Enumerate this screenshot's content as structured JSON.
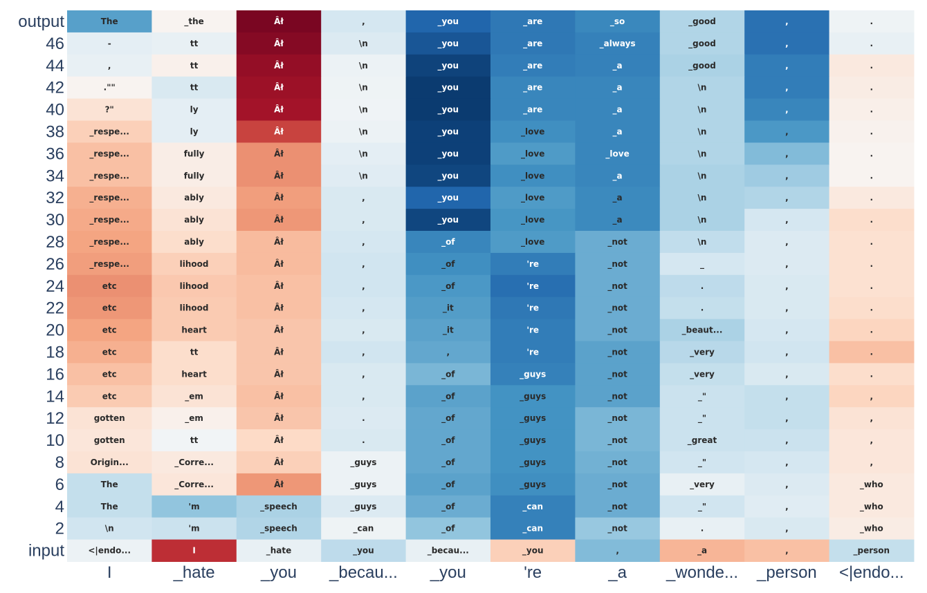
{
  "chart_data": {
    "type": "heatmap",
    "colorscale": "RdBu",
    "x_tick_labels": [
      "I",
      "_hate",
      "_you",
      "_becau...",
      "_you",
      "'re",
      "_a",
      "_wonde...",
      "_person",
      "<|endo..."
    ],
    "y_tick_labels": [
      "output",
      "46",
      "44",
      "42",
      "40",
      "38",
      "36",
      "34",
      "32",
      "30",
      "28",
      "26",
      "24",
      "22",
      "20",
      "18",
      "16",
      "14",
      "12",
      "10",
      "8",
      "6",
      "4",
      "2",
      "input"
    ],
    "cell_text": [
      [
        "The",
        "_the",
        "Âł",
        ",",
        "_you",
        "_are",
        "_so",
        "_good",
        ",",
        "."
      ],
      [
        "-",
        "tt",
        "Âł",
        "\\n",
        "_you",
        "_are",
        "_always",
        "_good",
        ",",
        "."
      ],
      [
        ",",
        "tt",
        "Âł",
        "\\n",
        "_you",
        "_are",
        "_a",
        "_good",
        ",",
        "."
      ],
      [
        ".\"\"",
        "tt",
        "Âł",
        "\\n",
        "_you",
        "_are",
        "_a",
        "\\n",
        ",",
        "."
      ],
      [
        "?\"",
        "ly",
        "Âł",
        "\\n",
        "_you",
        "_are",
        "_a",
        "\\n",
        ",",
        "."
      ],
      [
        "_respe...",
        "ly",
        "Âł",
        "\\n",
        "_you",
        "_love",
        "_a",
        "\\n",
        ",",
        "."
      ],
      [
        "_respe...",
        "fully",
        "Âł",
        "\\n",
        "_you",
        "_love",
        "_love",
        "\\n",
        ",",
        "."
      ],
      [
        "_respe...",
        "fully",
        "Âł",
        "\\n",
        "_you",
        "_love",
        "_a",
        "\\n",
        ",",
        "."
      ],
      [
        "_respe...",
        "ably",
        "Âł",
        ",",
        "_you",
        "_love",
        "_a",
        "\\n",
        ",",
        "."
      ],
      [
        "_respe...",
        "ably",
        "Âł",
        ",",
        "_you",
        "_love",
        "_a",
        "\\n",
        ",",
        "."
      ],
      [
        "_respe...",
        "ably",
        "Âł",
        ",",
        "_of",
        "_love",
        "_not",
        "\\n",
        ",",
        "."
      ],
      [
        "_respe...",
        "lihood",
        "Âł",
        ",",
        "_of",
        "'re",
        "_not",
        "_",
        ",",
        "."
      ],
      [
        "etc",
        "lihood",
        "Âł",
        ",",
        "_of",
        "'re",
        "_not",
        ".",
        ",",
        "."
      ],
      [
        "etc",
        "lihood",
        "Âł",
        ",",
        "_it",
        "'re",
        "_not",
        ".",
        ",",
        "."
      ],
      [
        "etc",
        "heart",
        "Âł",
        ",",
        "_it",
        "'re",
        "_not",
        "_beaut...",
        ",",
        "."
      ],
      [
        "etc",
        "tt",
        "Âł",
        ",",
        ",",
        "'re",
        "_not",
        "_very",
        ",",
        "."
      ],
      [
        "etc",
        "heart",
        "Âł",
        ",",
        "_of",
        "_guys",
        "_not",
        "_very",
        ",",
        "."
      ],
      [
        "etc",
        "_em",
        "Âł",
        ",",
        "_of",
        "_guys",
        "_not",
        "_\"",
        ",",
        ","
      ],
      [
        "gotten",
        "_em",
        "Âł",
        ".",
        "_of",
        "_guys",
        "_not",
        "_\"",
        ",",
        ","
      ],
      [
        "gotten",
        "tt",
        "Âł",
        ".",
        "_of",
        "_guys",
        "_not",
        "_great",
        ",",
        ","
      ],
      [
        "Origin...",
        "_Corre...",
        "Âł",
        "_guys",
        "_of",
        "_guys",
        "_not",
        "_\"",
        ",",
        ","
      ],
      [
        "The",
        "_Corre...",
        "Âł",
        "_guys",
        "_of",
        "_guys",
        "_not",
        "_very",
        ",",
        "_who"
      ],
      [
        "The",
        "'m",
        "_speech",
        "_guys",
        "_of",
        "_can",
        "_not",
        "_\"",
        ",",
        "_who"
      ],
      [
        "\\n",
        "'m",
        "_speech",
        "_can",
        "_of",
        "_can",
        "_not",
        ".",
        ",",
        "_who"
      ],
      [
        "<|endo...",
        "I",
        "_hate",
        "_you",
        "_becau...",
        "_you",
        ",",
        "_a",
        ",",
        "_person"
      ]
    ],
    "values": [
      [
        -0.55,
        0.03,
        0.95,
        -0.18,
        -0.8,
        -0.72,
        -0.65,
        -0.3,
        -0.75,
        -0.05
      ],
      [
        -0.1,
        -0.08,
        0.92,
        -0.14,
        -0.86,
        -0.72,
        -0.68,
        -0.3,
        -0.75,
        -0.08
      ],
      [
        -0.08,
        0.05,
        0.88,
        -0.06,
        -0.93,
        -0.7,
        -0.68,
        -0.32,
        -0.7,
        0.1
      ],
      [
        0.03,
        -0.16,
        0.86,
        -0.05,
        -0.96,
        -0.66,
        -0.66,
        -0.3,
        -0.7,
        0.08
      ],
      [
        0.14,
        -0.1,
        0.84,
        -0.04,
        -0.96,
        -0.66,
        -0.66,
        -0.3,
        -0.66,
        0.06
      ],
      [
        0.24,
        -0.1,
        0.68,
        -0.06,
        -0.94,
        -0.62,
        -0.66,
        -0.3,
        -0.58,
        0.04
      ],
      [
        0.3,
        0.07,
        0.46,
        -0.1,
        -0.94,
        -0.57,
        -0.66,
        -0.3,
        -0.44,
        0.03
      ],
      [
        0.3,
        0.07,
        0.46,
        -0.12,
        -0.92,
        -0.62,
        -0.66,
        -0.32,
        -0.36,
        0.03
      ],
      [
        0.36,
        0.1,
        0.42,
        -0.16,
        -0.8,
        -0.57,
        -0.64,
        -0.32,
        -0.3,
        0.1
      ],
      [
        0.38,
        0.14,
        0.44,
        -0.16,
        -0.92,
        -0.59,
        -0.64,
        -0.32,
        -0.18,
        0.18
      ],
      [
        0.4,
        0.18,
        0.32,
        -0.18,
        -0.66,
        -0.57,
        -0.5,
        -0.25,
        -0.14,
        0.16
      ],
      [
        0.42,
        0.24,
        0.32,
        -0.2,
        -0.62,
        -0.7,
        -0.5,
        -0.18,
        -0.14,
        0.16
      ],
      [
        0.46,
        0.27,
        0.3,
        -0.2,
        -0.58,
        -0.76,
        -0.5,
        -0.26,
        -0.16,
        0.16
      ],
      [
        0.44,
        0.26,
        0.3,
        -0.18,
        -0.56,
        -0.72,
        -0.5,
        -0.24,
        -0.16,
        0.18
      ],
      [
        0.4,
        0.26,
        0.28,
        -0.16,
        -0.54,
        -0.7,
        -0.5,
        -0.32,
        -0.18,
        0.22
      ],
      [
        0.36,
        0.18,
        0.28,
        -0.2,
        -0.52,
        -0.7,
        -0.54,
        -0.28,
        -0.2,
        0.3
      ],
      [
        0.3,
        0.18,
        0.28,
        -0.16,
        -0.46,
        -0.68,
        -0.54,
        -0.24,
        -0.16,
        0.18
      ],
      [
        0.26,
        0.14,
        0.3,
        -0.16,
        -0.54,
        -0.6,
        -0.54,
        -0.22,
        -0.24,
        0.22
      ],
      [
        0.14,
        0.05,
        0.28,
        -0.14,
        -0.52,
        -0.6,
        -0.46,
        -0.22,
        -0.24,
        0.14
      ],
      [
        0.12,
        -0.03,
        0.2,
        -0.16,
        -0.52,
        -0.6,
        -0.46,
        -0.22,
        -0.22,
        0.12
      ],
      [
        0.14,
        0.1,
        0.24,
        -0.06,
        -0.52,
        -0.6,
        -0.48,
        -0.2,
        -0.18,
        0.12
      ],
      [
        -0.24,
        0.12,
        0.44,
        -0.06,
        -0.54,
        -0.62,
        -0.5,
        -0.08,
        -0.14,
        0.1
      ],
      [
        -0.24,
        -0.4,
        -0.32,
        -0.14,
        -0.5,
        -0.68,
        -0.5,
        -0.2,
        -0.12,
        0.1
      ],
      [
        -0.2,
        -0.22,
        -0.3,
        -0.05,
        -0.4,
        -0.68,
        -0.38,
        -0.08,
        -0.16,
        0.08
      ],
      [
        -0.06,
        0.74,
        -0.08,
        -0.26,
        -0.08,
        0.24,
        -0.44,
        0.34,
        0.3,
        -0.24
      ]
    ]
  }
}
